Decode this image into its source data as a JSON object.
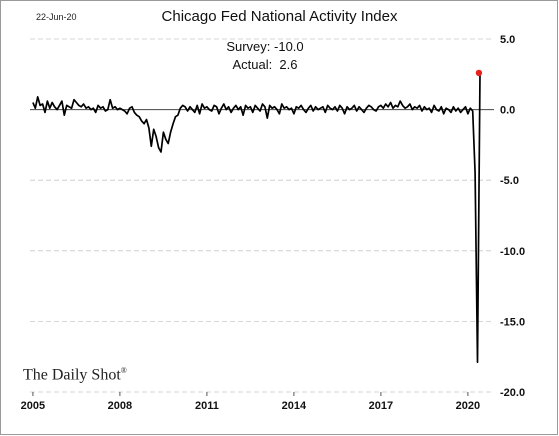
{
  "date_stamp": "22-Jun-20",
  "watermark": {
    "text": "The Daily Shot",
    "mark": "®"
  },
  "annotation": {
    "survey": "Survey: -10.0",
    "actual": "Actual:  2.6"
  },
  "colors": {
    "line": "#000000",
    "highlight": "#e8211d",
    "grid": "#c8c8c8",
    "zero": "#444444"
  },
  "chart_data": {
    "type": "line",
    "title": "Chicago Fed National Activity Index",
    "xlabel": "",
    "ylabel": "",
    "xlim": [
      2004.9,
      2020.9
    ],
    "ylim": [
      -20,
      5
    ],
    "y_axis_side": "right",
    "grid": "horizontal",
    "yticks": [
      5,
      0,
      -5,
      -10,
      -15,
      -20
    ],
    "ytick_labels": [
      "5.0",
      "0.0",
      "-5.0",
      "-10.0",
      "-15.0",
      "-20.0"
    ],
    "xticks": [
      2005,
      2008,
      2011,
      2014,
      2017,
      2020
    ],
    "xtick_labels": [
      "2005",
      "2008",
      "2011",
      "2014",
      "2017",
      "2020"
    ],
    "highlight": {
      "x": 2020.38,
      "y": 2.6
    },
    "series": [
      {
        "start": 2005.0,
        "step": 0.08333,
        "values": [
          0.5,
          0.1,
          0.9,
          0.3,
          0.4,
          -0.2,
          0.6,
          0.1,
          0.5,
          0.2,
          0.0,
          0.3,
          0.6,
          -0.4,
          0.3,
          0.2,
          0.1,
          0.7,
          0.5,
          0.3,
          0.2,
          0.4,
          0.1,
          0.2,
          0.0,
          0.1,
          -0.2,
          0.3,
          0.1,
          0.2,
          -0.1,
          0.0,
          0.7,
          0.1,
          0.2,
          0.0,
          0.1,
          0.0,
          -0.1,
          -0.3,
          0.1,
          0.2,
          -0.2,
          -0.4,
          -0.5,
          -0.8,
          -1.0,
          -0.7,
          -1.3,
          -2.6,
          -1.4,
          -1.9,
          -2.7,
          -3.0,
          -1.6,
          -2.1,
          -2.4,
          -1.6,
          -1.0,
          -0.5,
          -0.4,
          0.1,
          0.3,
          0.2,
          -0.1,
          0.2,
          0.0,
          -0.2,
          0.3,
          -0.3,
          0.4,
          0.1,
          0.2,
          0.0,
          -0.1,
          0.3,
          0.2,
          -0.3,
          0.1,
          0.4,
          0.0,
          0.2,
          -0.2,
          0.1,
          0.3,
          0.0,
          0.2,
          -0.4,
          0.3,
          0.1,
          0.2,
          -0.2,
          0.3,
          0.1,
          -0.1,
          0.4,
          0.2,
          -0.6,
          0.3,
          0.1,
          0.2,
          0.0,
          -0.3,
          0.4,
          0.1,
          0.2,
          0.0,
          0.1,
          -0.3,
          0.2,
          0.1,
          0.3,
          0.0,
          -0.2,
          0.1,
          0.3,
          -0.1,
          0.2,
          0.0,
          0.1,
          0.2,
          -0.2,
          0.3,
          0.1,
          0.0,
          0.2,
          -0.1,
          0.3,
          0.1,
          -0.3,
          0.2,
          0.0,
          0.1,
          0.3,
          -0.1,
          0.2,
          0.0,
          -0.2,
          0.1,
          0.3,
          0.2,
          0.0,
          -0.1,
          0.2,
          0.3,
          0.1,
          0.4,
          0.2,
          0.5,
          0.1,
          0.3,
          0.2,
          0.6,
          0.3,
          0.1,
          0.2,
          0.4,
          0.0,
          0.2,
          0.1,
          0.3,
          -0.1,
          0.2,
          0.0,
          0.1,
          -0.2,
          0.3,
          0.0,
          -0.1,
          0.2,
          -0.3,
          0.1,
          0.0,
          -0.2,
          0.2,
          -0.1,
          0.1,
          -0.2,
          0.0,
          0.2,
          -0.3,
          0.1,
          -0.1,
          -4.5,
          -17.9,
          2.6
        ]
      }
    ]
  }
}
